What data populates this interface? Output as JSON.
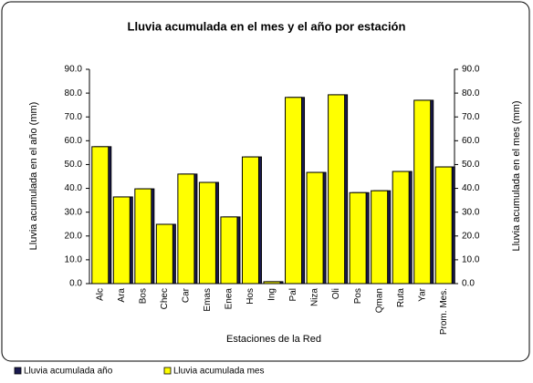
{
  "chart_data": {
    "type": "bar",
    "title": "Lluvia acumulada en el mes y el año por estación",
    "x_label": "Estaciones de la Red",
    "y_label": "Lluvia acumulada  en el año (mm)",
    "y2_label": "Lluvia acumulada en el mes (mm)",
    "categories": [
      "Alc",
      "Ara",
      "Bos",
      "Chec",
      "Car",
      "Emas",
      "Enea",
      "Hos",
      "Ing",
      "Pal",
      "Niza",
      "Oli",
      "Pos",
      "Qman",
      "Ruta",
      "Yar",
      "Prom. Mes."
    ],
    "series": [
      {
        "name": "Lluvia acumulada año",
        "color": "#1a1a50",
        "values": [
          57.5,
          36.4,
          39.8,
          24.9,
          46.0,
          42.5,
          28.0,
          53.2,
          0.8,
          78.2,
          46.7,
          79.3,
          38.2,
          39.0,
          47.1,
          77.0,
          49.0
        ]
      },
      {
        "name": "Lluvia acumulada mes",
        "color": "#ffff00",
        "axis": "y2",
        "values": [
          57.5,
          36.4,
          39.8,
          24.9,
          46.0,
          42.5,
          28.0,
          53.2,
          0.8,
          78.2,
          46.7,
          79.3,
          38.2,
          39.0,
          47.1,
          77.0,
          49.0
        ]
      }
    ],
    "ylim": [
      0,
      90
    ],
    "yticks": [
      {
        "value": 0,
        "label": "0.0"
      },
      {
        "value": 10,
        "label": "10.0"
      },
      {
        "value": 20,
        "label": "20.0"
      },
      {
        "value": 30,
        "label": "30.0"
      },
      {
        "value": 40,
        "label": "40.0"
      },
      {
        "value": 50,
        "label": "50.0"
      },
      {
        "value": 60,
        "label": "60.0"
      },
      {
        "value": 70,
        "label": "70.0"
      },
      {
        "value": 80,
        "label": "80.0"
      },
      {
        "value": 90,
        "label": "90.0"
      }
    ],
    "y2lim": [
      0,
      90
    ],
    "y2ticks": [
      {
        "value": 0,
        "label": "0.0"
      },
      {
        "value": 10,
        "label": "10.0"
      },
      {
        "value": 20,
        "label": "20.0"
      },
      {
        "value": 30,
        "label": "30.0"
      },
      {
        "value": 40,
        "label": "40.0"
      },
      {
        "value": 50,
        "label": "50.0"
      },
      {
        "value": 60,
        "label": "60.0"
      },
      {
        "value": 70,
        "label": "70.0"
      },
      {
        "value": 80,
        "label": "80.0"
      },
      {
        "value": 90,
        "label": "90.0"
      }
    ],
    "legend": "bottom"
  }
}
